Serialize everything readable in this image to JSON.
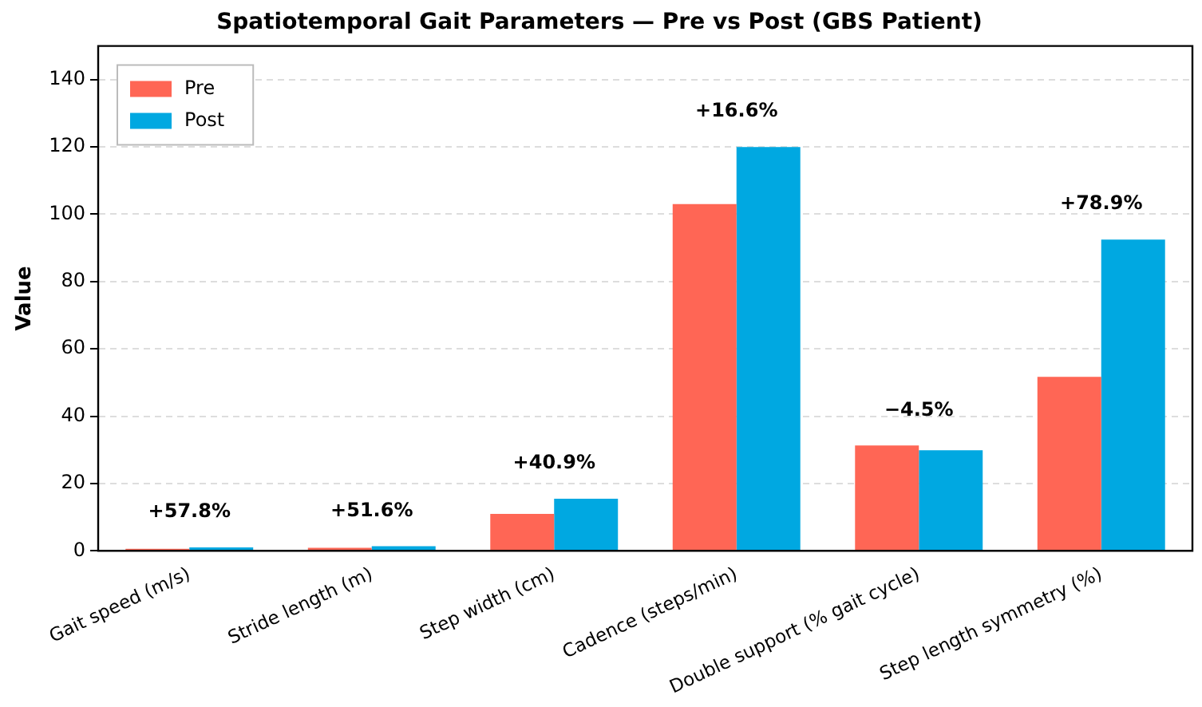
{
  "chart_data": {
    "type": "bar",
    "title": "Spatiotemporal Gait Parameters — Pre vs Post (GBS Patient)",
    "ylabel": "Value",
    "categories": [
      "Gait speed (m/s)",
      "Stride length (m)",
      "Step width (cm)",
      "Cadence (steps/min)",
      "Double support (% gait cycle)",
      "Step length symmetry (%)"
    ],
    "series": [
      {
        "name": "Pre",
        "color": "#ff6655",
        "values": [
          0.6,
          0.9,
          11,
          103,
          31.3,
          51.7
        ]
      },
      {
        "name": "Post",
        "color": "#00a8e1",
        "values": [
          1.0,
          1.4,
          15.5,
          120,
          29.9,
          92.5
        ]
      }
    ],
    "ylim": [
      0,
      150
    ],
    "yticks": [
      0,
      20,
      40,
      60,
      80,
      100,
      120,
      140
    ],
    "grid": "y",
    "legend": "top left",
    "annotations": [
      "+57.8%",
      "+51.6%",
      "+40.9%",
      "+16.6%",
      "−4.5%",
      "+78.9%"
    ]
  }
}
